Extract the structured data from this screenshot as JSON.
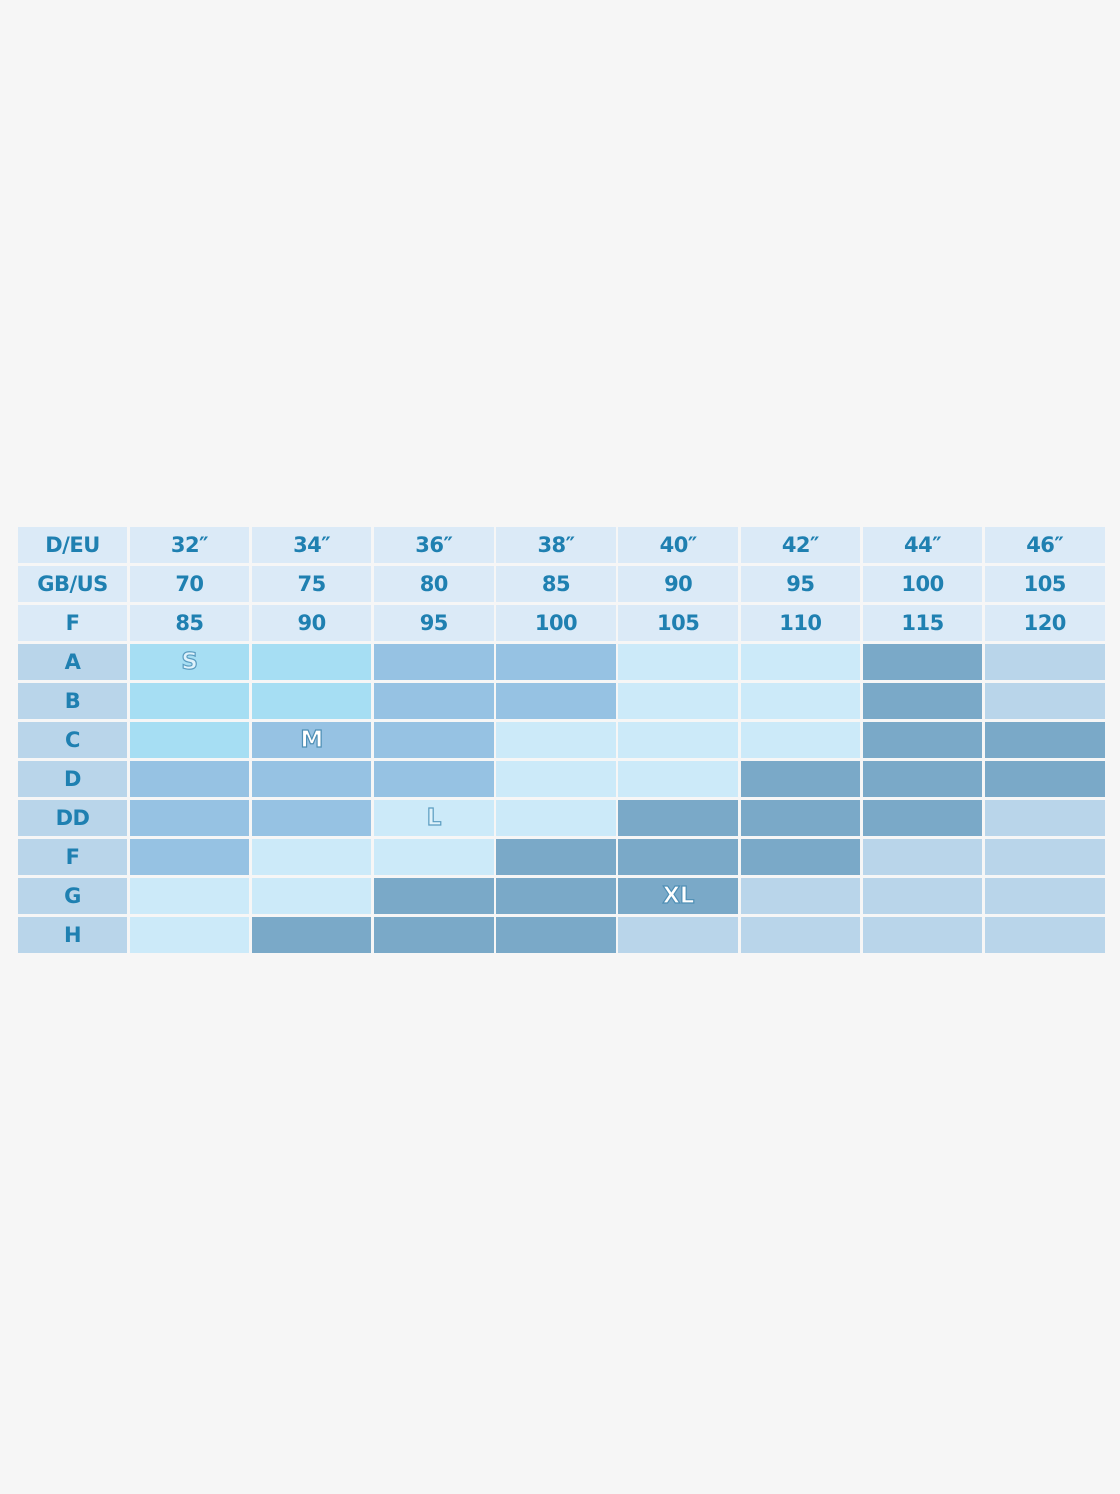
{
  "chart_data": {
    "type": "table",
    "header_rows": [
      {
        "label": "D/EU",
        "values": [
          "32″",
          "34″",
          "36″",
          "38″",
          "40″",
          "42″",
          "44″",
          "46″"
        ]
      },
      {
        "label": "GB/US",
        "values": [
          "70",
          "75",
          "80",
          "85",
          "90",
          "95",
          "100",
          "105"
        ]
      },
      {
        "label": "F",
        "values": [
          "85",
          "90",
          "95",
          "100",
          "105",
          "110",
          "115",
          "120"
        ]
      }
    ],
    "cup_rows": [
      "A",
      "B",
      "C",
      "D",
      "DD",
      "F",
      "G",
      "H"
    ],
    "size_colors": {
      "S": "#a6def3",
      "M": "#96c2e3",
      "L": "#cceaf9",
      "XL": "#7aa9c8",
      "none": "#b9d5ea"
    },
    "grid": [
      [
        "S",
        "S",
        "M",
        "M",
        "L",
        "L",
        "XL",
        "none"
      ],
      [
        "S",
        "S",
        "M",
        "M",
        "L",
        "L",
        "XL",
        "none"
      ],
      [
        "S",
        "M",
        "M",
        "L",
        "L",
        "L",
        "XL",
        "XL"
      ],
      [
        "M",
        "M",
        "M",
        "L",
        "L",
        "XL",
        "XL",
        "XL"
      ],
      [
        "M",
        "M",
        "L",
        "L",
        "XL",
        "XL",
        "XL",
        "none"
      ],
      [
        "M",
        "L",
        "L",
        "XL",
        "XL",
        "XL",
        "none",
        "none"
      ],
      [
        "L",
        "L",
        "XL",
        "XL",
        "XL",
        "none",
        "none",
        "none"
      ],
      [
        "L",
        "XL",
        "XL",
        "XL",
        "none",
        "none",
        "none",
        "none"
      ]
    ],
    "size_labels": [
      {
        "text": "S",
        "row": 0,
        "col": 0
      },
      {
        "text": "M",
        "row": 2,
        "col": 1
      },
      {
        "text": "L",
        "row": 4,
        "col": 2
      },
      {
        "text": "XL",
        "row": 6,
        "col": 4
      }
    ],
    "header_color": "#dbeaf7",
    "text_color": "#1f80b1"
  }
}
